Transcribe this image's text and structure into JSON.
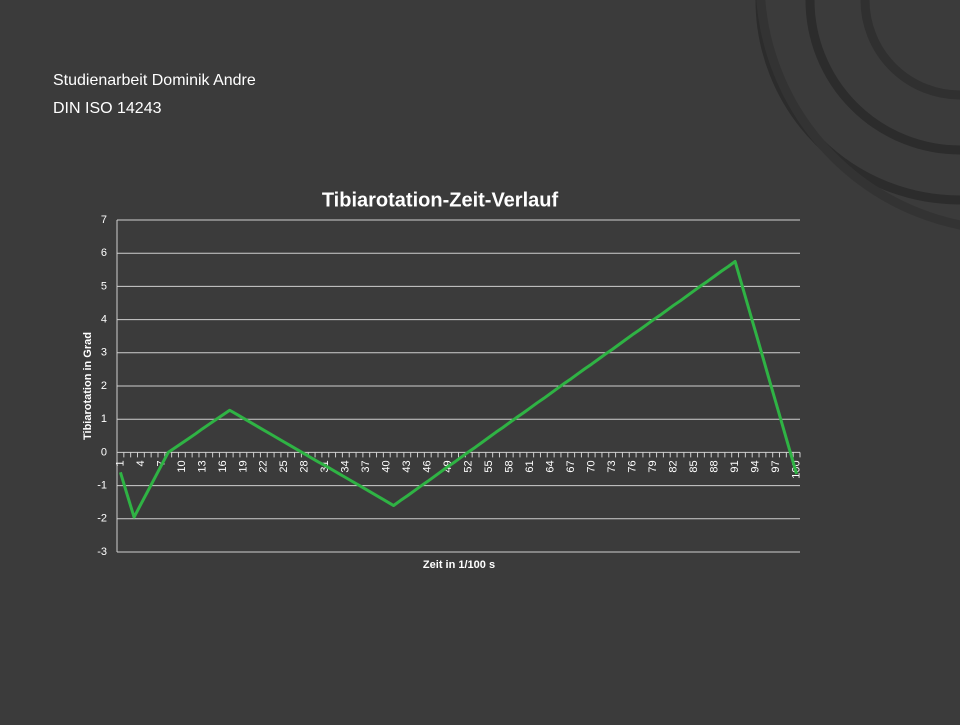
{
  "slide": {
    "lines": [
      "Studienarbeit Dominik Andre",
      "DIN ISO 14243"
    ]
  },
  "chart_data": {
    "type": "line",
    "title": "Tibiarotation-Zeit-Verlauf",
    "x_label": "Zeit in 1/100 s",
    "y_label": "Tibiarotation in Grad",
    "categories": [
      "1",
      null,
      null,
      "4",
      null,
      null,
      "7",
      null,
      null,
      "10",
      null,
      null,
      "13",
      null,
      null,
      "16",
      null,
      null,
      "19",
      null,
      null,
      "22",
      null,
      null,
      "25",
      null,
      null,
      "28",
      null,
      null,
      "31",
      null,
      null,
      "34",
      null,
      null,
      "37",
      null,
      null,
      "40",
      null,
      null,
      "43",
      null,
      null,
      "46",
      null,
      null,
      "49",
      null,
      null,
      "52",
      null,
      null,
      "55",
      null,
      null,
      "58",
      null,
      null,
      "61",
      null,
      null,
      "64",
      null,
      null,
      "67",
      null,
      null,
      "70",
      null,
      null,
      "73",
      null,
      null,
      "76",
      null,
      null,
      "79",
      null,
      null,
      "82",
      null,
      null,
      "85",
      null,
      null,
      "88",
      null,
      null,
      "91",
      null,
      null,
      "94",
      null,
      null,
      "97",
      null,
      null,
      "100"
    ],
    "values": [
      -0.6,
      -1.28,
      -1.95,
      -1.56,
      -1.17,
      -0.78,
      -0.39,
      0,
      0.14,
      0.28,
      0.42,
      0.56,
      0.71,
      0.85,
      0.99,
      1.13,
      1.27,
      1.15,
      1.03,
      0.91,
      0.79,
      0.67,
      0.55,
      0.43,
      0.31,
      0.19,
      0.07,
      -0.05,
      -0.17,
      -0.29,
      -0.4,
      -0.52,
      -0.64,
      -0.76,
      -0.88,
      -1.0,
      -1.12,
      -1.24,
      -1.36,
      -1.48,
      -1.6,
      -1.45,
      -1.31,
      -1.16,
      -1.01,
      -0.87,
      -0.72,
      -0.57,
      -0.42,
      -0.28,
      -0.13,
      0.02,
      0.16,
      0.31,
      0.46,
      0.61,
      0.75,
      0.9,
      1.05,
      1.19,
      1.34,
      1.49,
      1.63,
      1.78,
      1.93,
      2.08,
      2.22,
      2.37,
      2.52,
      2.66,
      2.81,
      2.96,
      3.1,
      3.25,
      3.4,
      3.55,
      3.69,
      3.84,
      3.99,
      4.13,
      4.28,
      4.43,
      4.57,
      4.72,
      4.87,
      5.02,
      5.16,
      5.31,
      5.46,
      5.6,
      5.75,
      5.04,
      4.33,
      3.62,
      2.91,
      2.19,
      1.48,
      0.77,
      0.06,
      -0.65
    ],
    "color": "#2fb344",
    "ylim": [
      -3,
      7
    ],
    "yticks": [
      -3,
      -2,
      -1,
      0,
      1,
      2,
      3,
      4,
      5,
      6,
      7
    ],
    "grid": true
  }
}
